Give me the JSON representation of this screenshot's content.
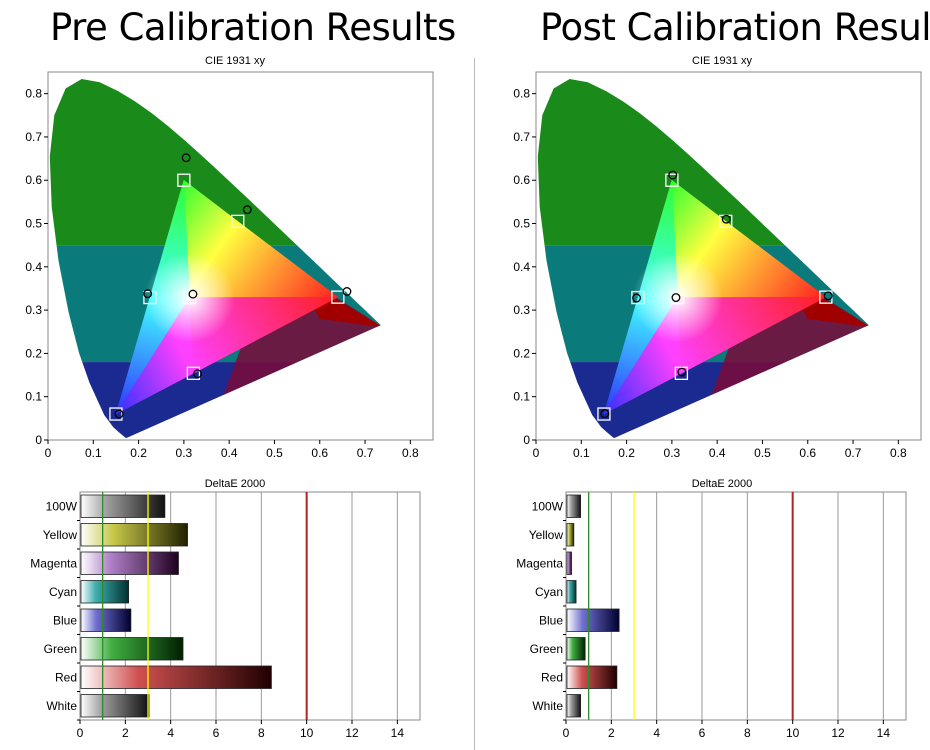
{
  "pre": {
    "title": "Pre Calibration Results",
    "cie_title": "CIE 1931 xy",
    "delta_title": "DeltaE 2000"
  },
  "post": {
    "title": "Post Calibration Results",
    "cie_title": "CIE 1931 xy",
    "delta_title": "DeltaE 2000"
  },
  "chart_data": [
    {
      "type": "scatter",
      "panel": "pre",
      "title": "CIE 1931 xy",
      "xlim": [
        0,
        0.85
      ],
      "ylim": [
        0,
        0.85
      ],
      "xticks": [
        "0",
        "0.1",
        "0.2",
        "0.3",
        "0.4",
        "0.5",
        "0.6",
        "0.7",
        "0.8"
      ],
      "yticks": [
        "0",
        "0.1",
        "0.2",
        "0.3",
        "0.4",
        "0.5",
        "0.6",
        "0.7",
        "0.8"
      ],
      "series": [
        {
          "marker": "square",
          "points": [
            [
              0.64,
              0.33
            ],
            [
              0.3,
              0.6
            ],
            [
              0.15,
              0.06
            ],
            [
              0.419,
              0.505
            ],
            [
              0.225,
              0.329
            ],
            [
              0.321,
              0.154
            ],
            [
              0.3127,
              0.329
            ]
          ]
        },
        {
          "marker": "circle",
          "points": [
            [
              0.66,
              0.343
            ],
            [
              0.305,
              0.652
            ],
            [
              0.157,
              0.06
            ],
            [
              0.44,
              0.532
            ],
            [
              0.22,
              0.338
            ],
            [
              0.33,
              0.153
            ],
            [
              0.32,
              0.337
            ]
          ]
        }
      ]
    },
    {
      "type": "bar",
      "panel": "pre",
      "title": "DeltaE 2000",
      "categories": [
        "100W",
        "Yellow",
        "Magenta",
        "Cyan",
        "Blue",
        "Green",
        "Red",
        "White"
      ],
      "values": [
        3.7,
        4.7,
        4.3,
        2.1,
        2.2,
        4.5,
        8.4,
        3.0
      ],
      "xlim": [
        0,
        15
      ],
      "xticks": [
        "0",
        "2",
        "4",
        "6",
        "8",
        "10",
        "12",
        "14"
      ],
      "reference_lines": [
        {
          "value": 1,
          "color": "#2e8b2e"
        },
        {
          "value": 3,
          "color": "#ffff00"
        },
        {
          "value": 10,
          "color": "#b22222"
        }
      ],
      "bar_colors": [
        "#a0a0a0",
        "#c8c84a",
        "#b080c8",
        "#40b0b0",
        "#7070d0",
        "#40b040",
        "#d05050",
        "#a0a0a0"
      ],
      "dark_colors": [
        "#101010",
        "#202000",
        "#200020",
        "#003030",
        "#000030",
        "#002000",
        "#200000",
        "#101010"
      ]
    },
    {
      "type": "scatter",
      "panel": "post",
      "title": "CIE 1931 xy",
      "xlim": [
        0,
        0.85
      ],
      "ylim": [
        0,
        0.85
      ],
      "xticks": [
        "0",
        "0.1",
        "0.2",
        "0.3",
        "0.4",
        "0.5",
        "0.6",
        "0.7",
        "0.8"
      ],
      "yticks": [
        "0",
        "0.1",
        "0.2",
        "0.3",
        "0.4",
        "0.5",
        "0.6",
        "0.7",
        "0.8"
      ],
      "series": [
        {
          "marker": "square",
          "points": [
            [
              0.64,
              0.33
            ],
            [
              0.3,
              0.6
            ],
            [
              0.15,
              0.06
            ],
            [
              0.419,
              0.505
            ],
            [
              0.225,
              0.329
            ],
            [
              0.321,
              0.154
            ],
            [
              0.3127,
              0.329
            ]
          ]
        },
        {
          "marker": "circle",
          "points": [
            [
              0.645,
              0.333
            ],
            [
              0.302,
              0.612
            ],
            [
              0.152,
              0.061
            ],
            [
              0.42,
              0.51
            ],
            [
              0.222,
              0.328
            ],
            [
              0.322,
              0.157
            ],
            [
              0.309,
              0.329
            ]
          ]
        }
      ]
    },
    {
      "type": "bar",
      "panel": "post",
      "title": "DeltaE 2000",
      "categories": [
        "100W",
        "Yellow",
        "Magenta",
        "Cyan",
        "Blue",
        "Green",
        "Red",
        "White"
      ],
      "values": [
        0.6,
        0.3,
        0.2,
        0.4,
        2.3,
        0.8,
        2.2,
        0.6
      ],
      "xlim": [
        0,
        15
      ],
      "xticks": [
        "0",
        "2",
        "4",
        "6",
        "8",
        "10",
        "12",
        "14"
      ],
      "reference_lines": [
        {
          "value": 1,
          "color": "#2e8b2e"
        },
        {
          "value": 3,
          "color": "#ffff00"
        },
        {
          "value": 10,
          "color": "#b22222"
        }
      ],
      "bar_colors": [
        "#a0a0a0",
        "#c8c84a",
        "#b080c8",
        "#40b0b0",
        "#7070d0",
        "#40b040",
        "#d05050",
        "#a0a0a0"
      ],
      "dark_colors": [
        "#101010",
        "#202000",
        "#200020",
        "#003030",
        "#000030",
        "#002000",
        "#200000",
        "#101010"
      ]
    }
  ]
}
